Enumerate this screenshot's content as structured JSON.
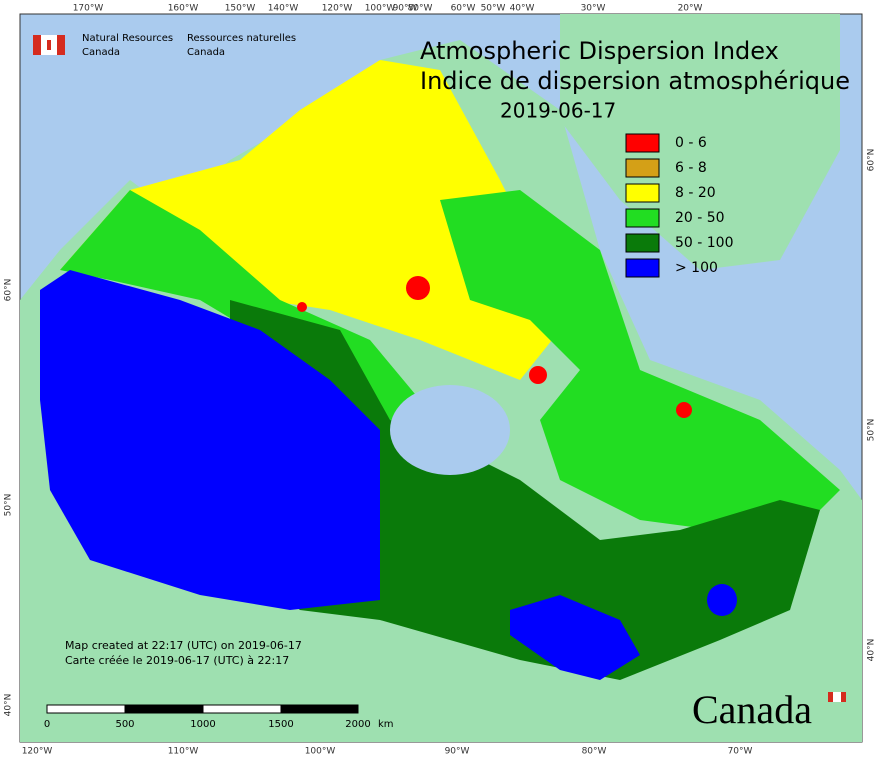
{
  "header": {
    "agency_en": [
      "Natural Resources",
      "Canada"
    ],
    "agency_fr": [
      "Ressources naturelles",
      "Canada"
    ]
  },
  "title": [
    "Atmospheric Dispersion Index",
    "Indice de dispersion atmosphérique"
  ],
  "date": "2019-06-17",
  "legend": [
    {
      "label": "0 - 6",
      "color": "#ff0000"
    },
    {
      "label": "6 - 8",
      "color": "#d4a017"
    },
    {
      "label": "8 - 20",
      "color": "#ffff00"
    },
    {
      "label": "20 - 50",
      "color": "#22dd22"
    },
    {
      "label": "50 - 100",
      "color": "#0a7a0a"
    },
    {
      "label": "> 100",
      "color": "#0000ff"
    }
  ],
  "graticule": {
    "top": [
      "170°W",
      "160°W",
      "150°W",
      "140°W",
      "120°W",
      "100°W",
      "90°W",
      "80°W",
      "60°W",
      "50°W",
      "40°W",
      "30°W",
      "20°W"
    ],
    "bottom": [
      "120°W",
      "110°W",
      "100°W",
      "90°W",
      "80°W",
      "70°W"
    ],
    "left": [
      "60°N",
      "50°N",
      "40°N"
    ],
    "right": [
      "60°N",
      "50°N",
      "40°N"
    ]
  },
  "credits": [
    "Map created at 22:17 (UTC) on 2019-06-17",
    "Carte créée le 2019-06-17 (UTC) à 22:17"
  ],
  "scale_bar": {
    "labels": [
      "0",
      "500",
      "1000",
      "1500",
      "2000"
    ],
    "unit": "km"
  },
  "wordmark": "Canada"
}
